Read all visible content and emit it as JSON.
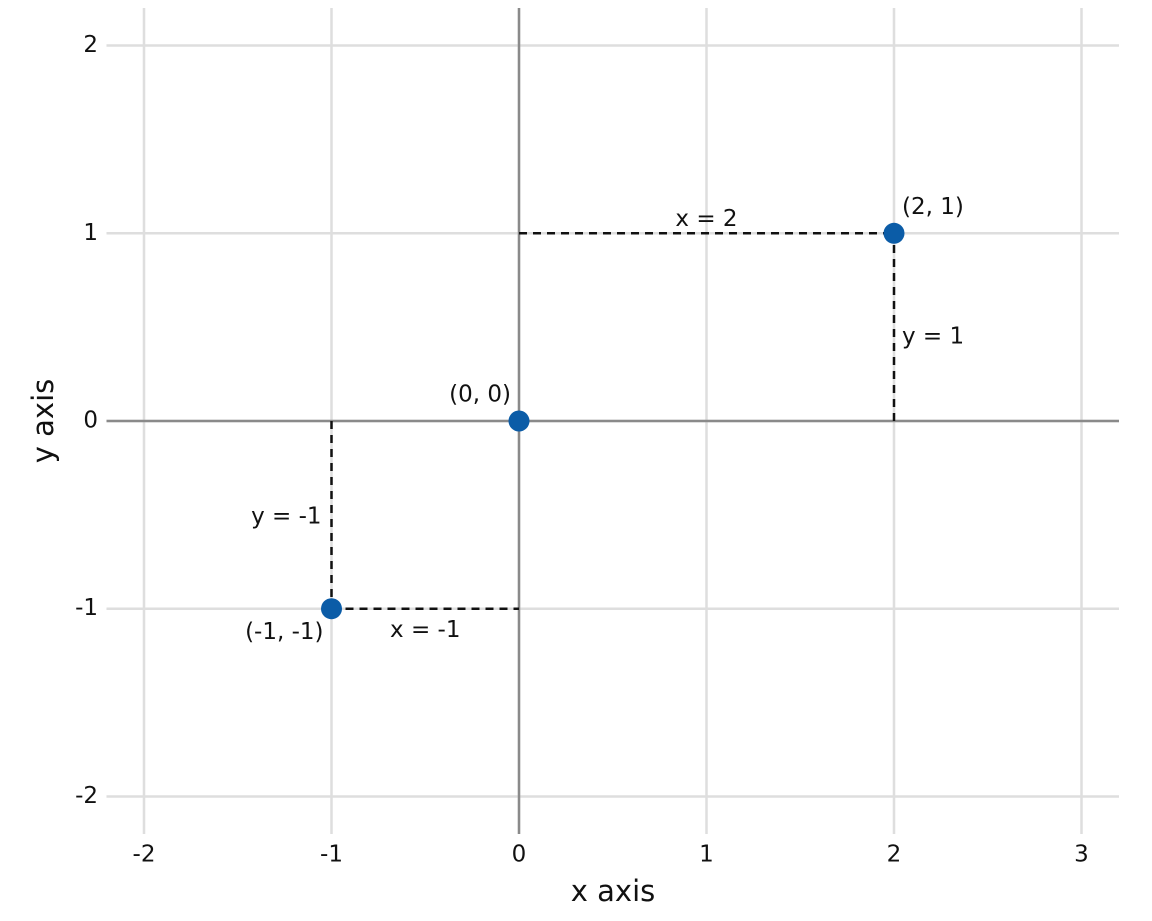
{
  "chart_data": {
    "type": "scatter",
    "x_label": "x axis",
    "y_label": "y axis",
    "xlim": [
      -2.2,
      3.2
    ],
    "ylim": [
      -2.2,
      2.2
    ],
    "xticks": [
      -2,
      -1,
      0,
      1,
      2,
      3
    ],
    "yticks": [
      -2,
      -1,
      0,
      1,
      2
    ],
    "grid": true,
    "zero_lines": true,
    "points": {
      "x": [
        0,
        2,
        -1
      ],
      "y": [
        0,
        1,
        -1
      ],
      "labels": [
        "(0, 0)",
        "(2, 1)",
        "(-1, -1)"
      ],
      "color": "#0b5ca7"
    },
    "guides": [
      {
        "label": "x = 2",
        "x": [
          0,
          2
        ],
        "y": [
          1,
          1
        ]
      },
      {
        "label": "y = 1",
        "x": [
          2,
          2
        ],
        "y": [
          0,
          1
        ]
      },
      {
        "label": "y = -1",
        "x": [
          -1,
          -1
        ],
        "y": [
          0,
          -1
        ]
      },
      {
        "label": "x = -1",
        "x": [
          -1,
          0
        ],
        "y": [
          -1,
          -1
        ]
      }
    ]
  }
}
